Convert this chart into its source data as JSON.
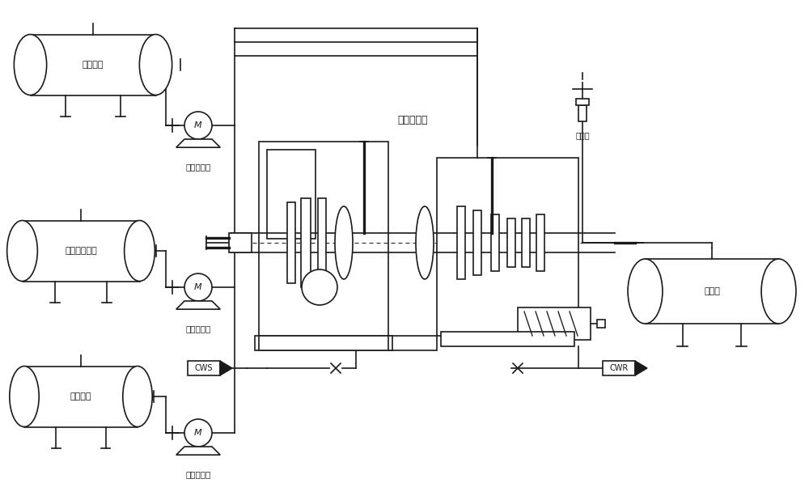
{
  "bg_color": "#ffffff",
  "lc": "#1a1a1a",
  "lw": 1.2,
  "fig_w": 10.0,
  "fig_h": 6.13,
  "tank1_label": "液氯储罐",
  "tank2_label": "二硫化碳储罐",
  "tank3_label": "盐酸储罐",
  "tank4_label": "产物罐",
  "pump_label": "高压计量泵",
  "reactor_label": "管道反应器",
  "valve_label": "背压阀",
  "cws_label": "CWS",
  "cwr_label": "CWR"
}
